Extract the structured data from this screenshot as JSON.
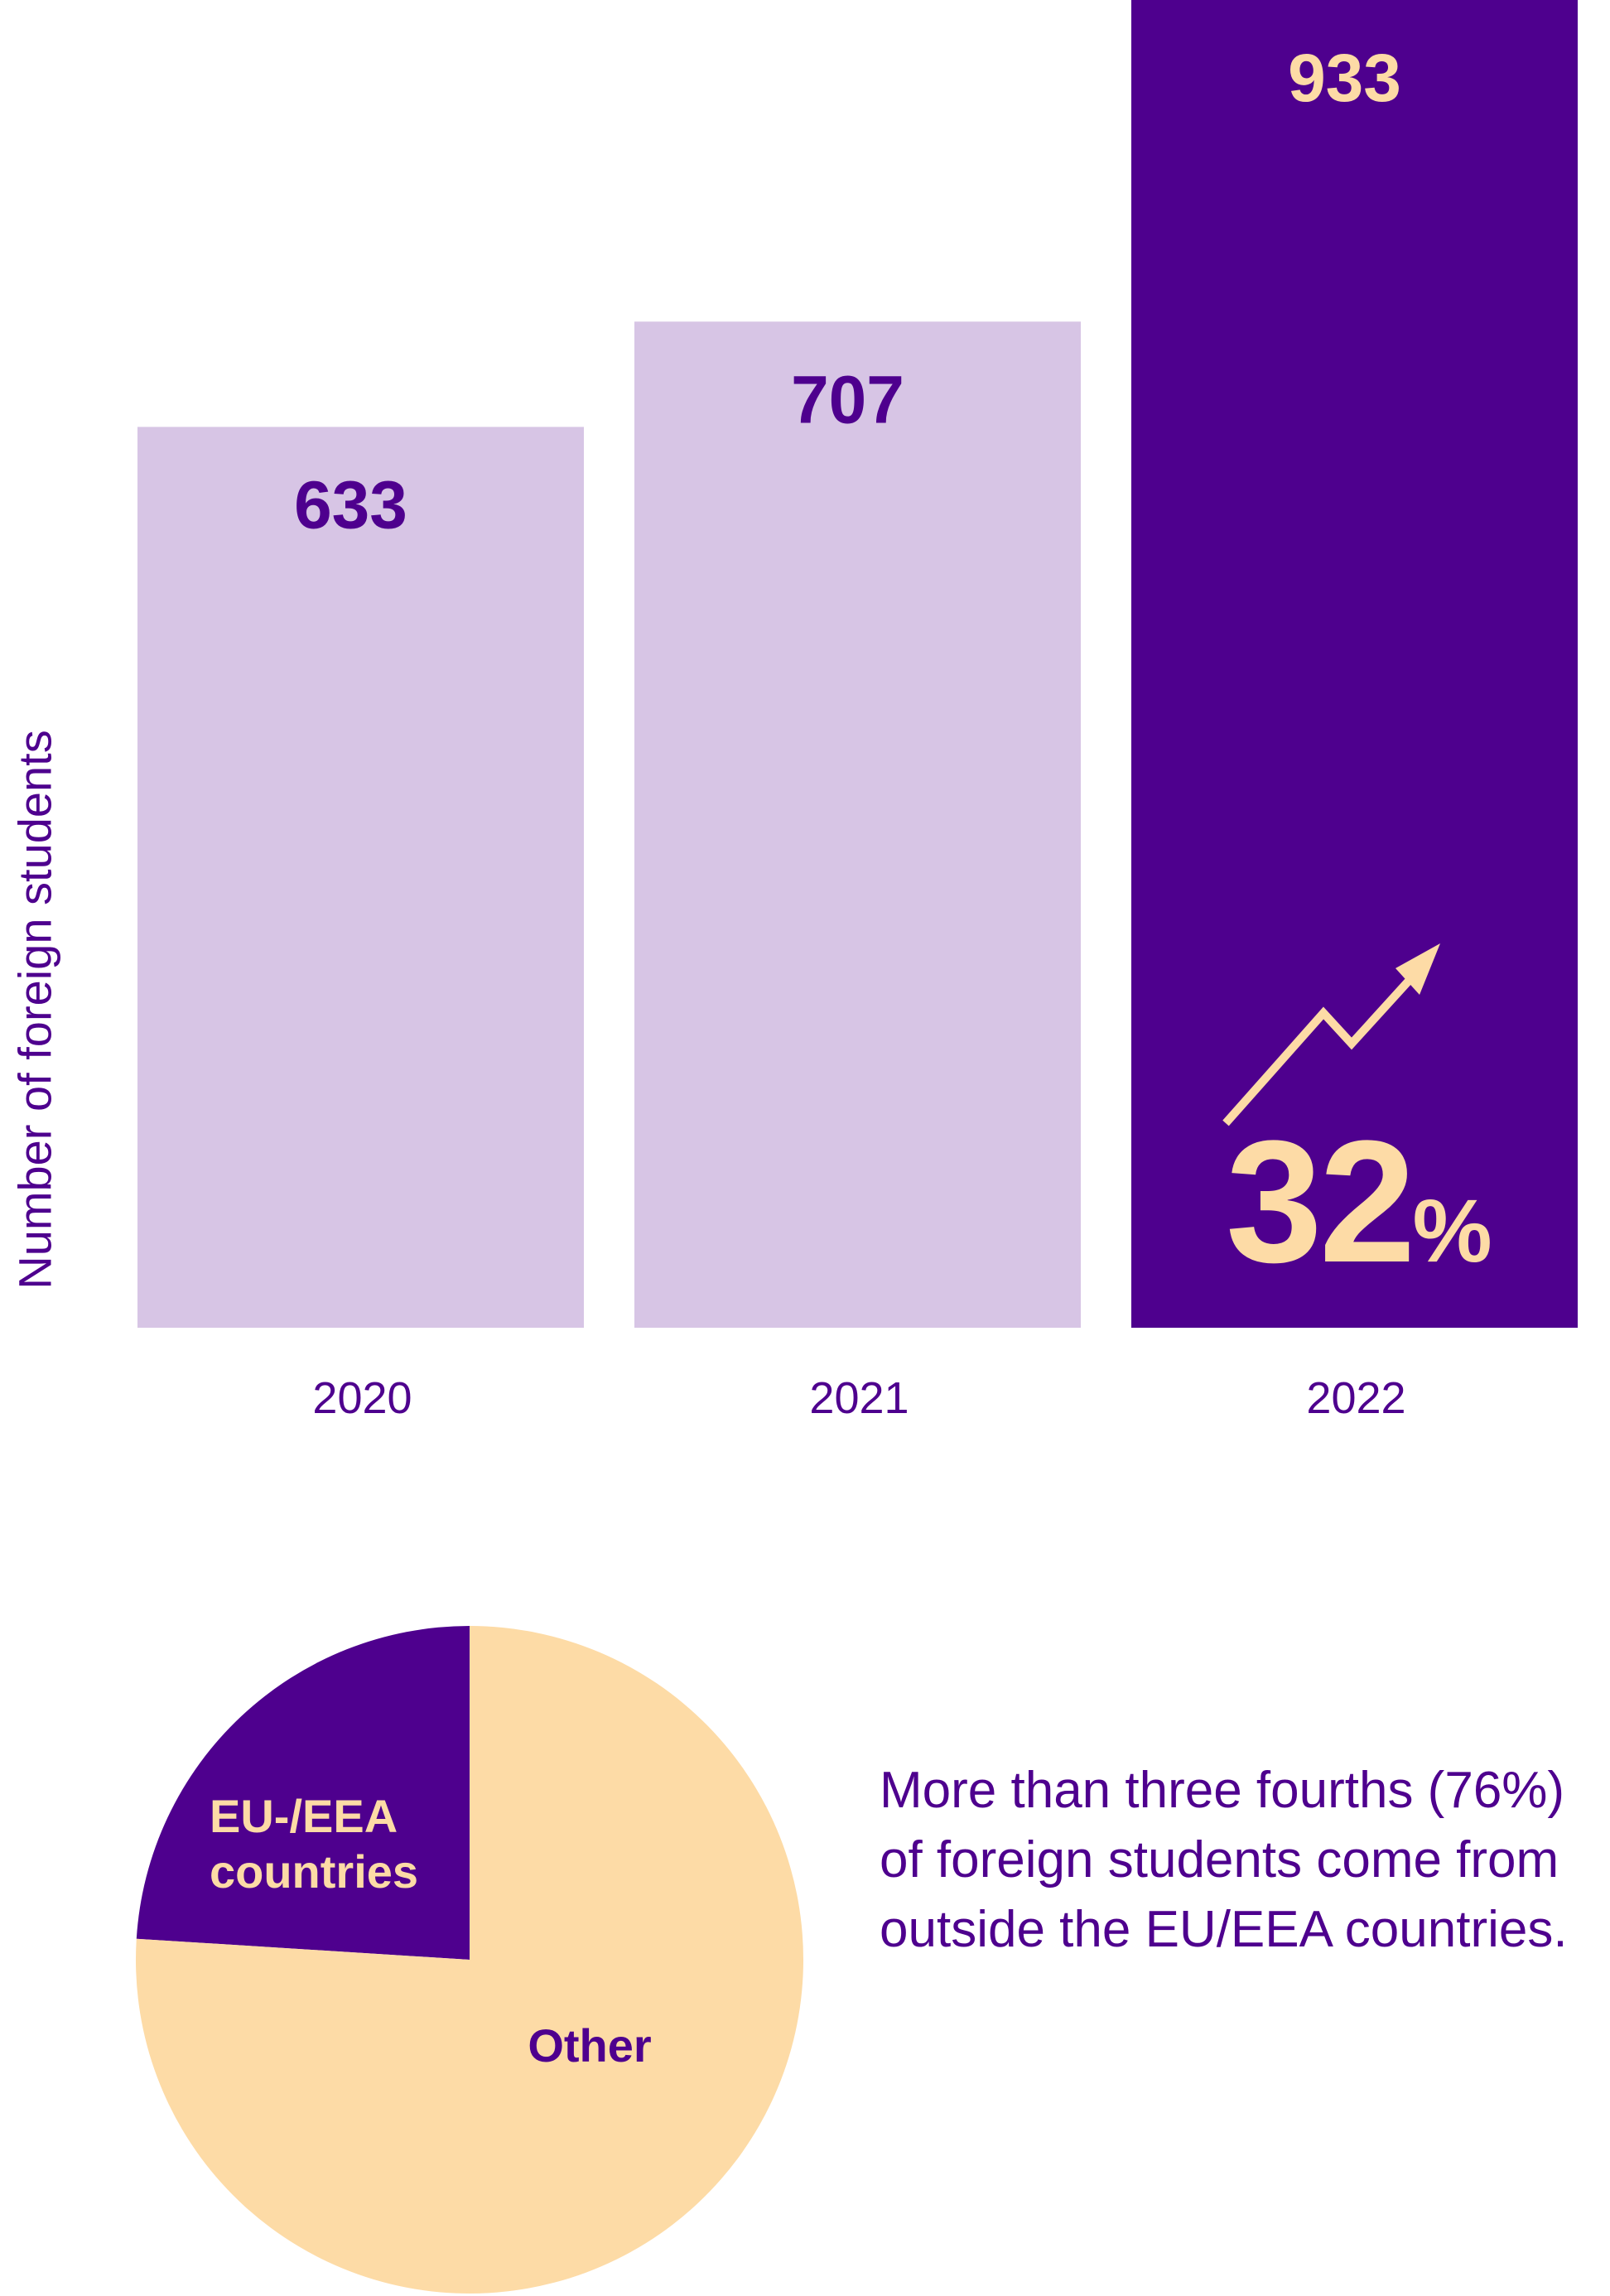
{
  "chart_data": [
    {
      "type": "bar",
      "ylabel": "Number of foreign students",
      "categories": [
        "2020",
        "2021",
        "2022"
      ],
      "values": [
        633,
        707,
        933
      ],
      "data_labels": [
        "633",
        "707",
        "933"
      ],
      "ylim": [
        0,
        933
      ],
      "grid": false,
      "highlight_category": "2022",
      "annotation": {
        "value": "32",
        "unit": "%",
        "icon": "trend-up-arrow-icon"
      },
      "colors": {
        "bar": "#d7c5e5",
        "highlight": "#4e008e",
        "label": "#4e008e",
        "highlight_label": "#fddba6"
      }
    },
    {
      "type": "pie",
      "slices": [
        {
          "label": "EU-/EEA countries",
          "value": 24,
          "color": "#4e008e"
        },
        {
          "label": "Other",
          "value": 76,
          "color": "#fddba6"
        }
      ]
    }
  ],
  "note": "More than three fourths (76%) of foreign students come from outside the EU/EEA countries."
}
